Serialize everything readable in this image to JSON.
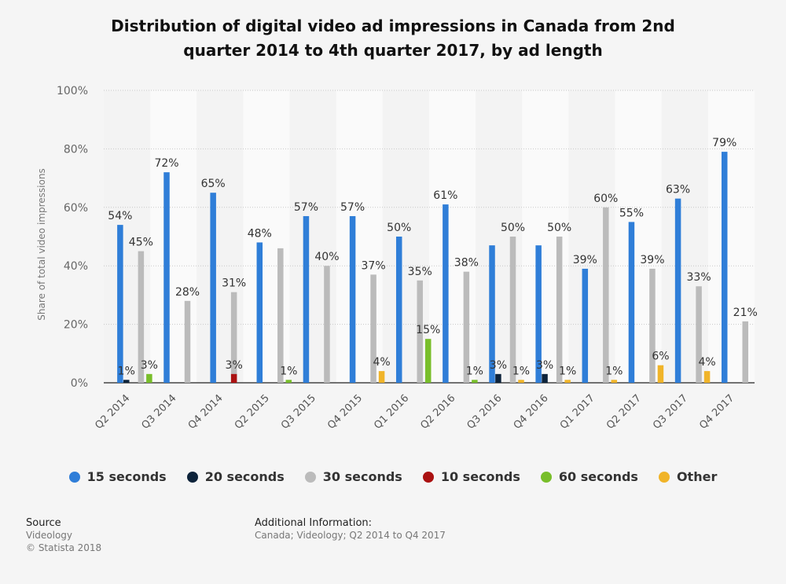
{
  "title": "Distribution of digital video ad impressions in Canada from 2nd quarter 2014 to 4th quarter 2017, by ad length",
  "title_lines": [
    "Distribution of digital video ad impressions in Canada from 2nd",
    "quarter 2014 to 4th quarter 2017, by ad length"
  ],
  "source": {
    "heading": "Source",
    "lines": [
      "Videology",
      "© Statista 2018"
    ]
  },
  "additional": {
    "heading": "Additional Information:",
    "text": "Canada; Videology; Q2 2014 to Q4 2017"
  },
  "chart_data": {
    "type": "bar",
    "ylabel": "Share of total video impressions",
    "ylim": [
      0,
      100
    ],
    "yticks": [
      "0%",
      "20%",
      "40%",
      "60%",
      "80%",
      "100%"
    ],
    "grid": true,
    "legend_position": "bottom",
    "categories": [
      "Q2 2014",
      "Q3 2014",
      "Q4 2014",
      "Q2 2015",
      "Q3 2015",
      "Q4 2015",
      "Q1 2016",
      "Q2 2016",
      "Q3 2016",
      "Q4 2016",
      "Q1 2017",
      "Q2 2017",
      "Q3 2017",
      "Q4 2017"
    ],
    "series": [
      {
        "name": "15 seconds",
        "color": "#2f7ed8",
        "values": [
          54,
          72,
          65,
          48,
          57,
          57,
          50,
          61,
          47,
          47,
          39,
          55,
          63,
          79
        ],
        "labels": [
          "54%",
          "72%",
          "65%",
          "48%",
          "57%",
          "57%",
          "50%",
          "61%",
          null,
          null,
          "39%",
          "55%",
          "63%",
          "79%"
        ]
      },
      {
        "name": "20 seconds",
        "color": "#0d233a",
        "values": [
          1,
          null,
          null,
          null,
          null,
          null,
          null,
          null,
          3,
          3,
          null,
          null,
          null,
          null
        ],
        "labels": [
          "1%",
          null,
          null,
          null,
          null,
          null,
          null,
          null,
          "3%",
          "3%",
          null,
          null,
          null,
          null
        ]
      },
      {
        "name": "30 seconds",
        "color": "#bbbbbb",
        "values": [
          45,
          28,
          31,
          46,
          40,
          37,
          35,
          38,
          50,
          50,
          60,
          39,
          33,
          21
        ],
        "labels": [
          "45%",
          "28%",
          "31%",
          null,
          "40%",
          "37%",
          "35%",
          "38%",
          "50%",
          "50%",
          "60%",
          "39%",
          "33%",
          "21%"
        ]
      },
      {
        "name": "10 seconds",
        "color": "#aa1111",
        "values": [
          null,
          null,
          3,
          null,
          null,
          null,
          null,
          null,
          null,
          null,
          null,
          null,
          null,
          null
        ],
        "labels": [
          null,
          null,
          "3%",
          null,
          null,
          null,
          null,
          null,
          null,
          null,
          null,
          null,
          null,
          null
        ]
      },
      {
        "name": "60 seconds",
        "color": "#78be2a",
        "values": [
          3,
          null,
          null,
          1,
          null,
          null,
          15,
          1,
          null,
          null,
          null,
          null,
          null,
          null
        ],
        "labels": [
          "3%",
          null,
          null,
          "1%",
          null,
          null,
          "15%",
          "1%",
          null,
          null,
          null,
          null,
          null,
          null
        ]
      },
      {
        "name": "Other",
        "color": "#f0b429",
        "values": [
          null,
          null,
          null,
          null,
          null,
          4,
          null,
          null,
          1,
          1,
          1,
          6,
          4,
          null
        ],
        "labels": [
          null,
          null,
          null,
          null,
          null,
          "4%",
          null,
          null,
          "1%",
          "1%",
          "1%",
          "6%",
          "4%",
          null
        ]
      }
    ]
  }
}
